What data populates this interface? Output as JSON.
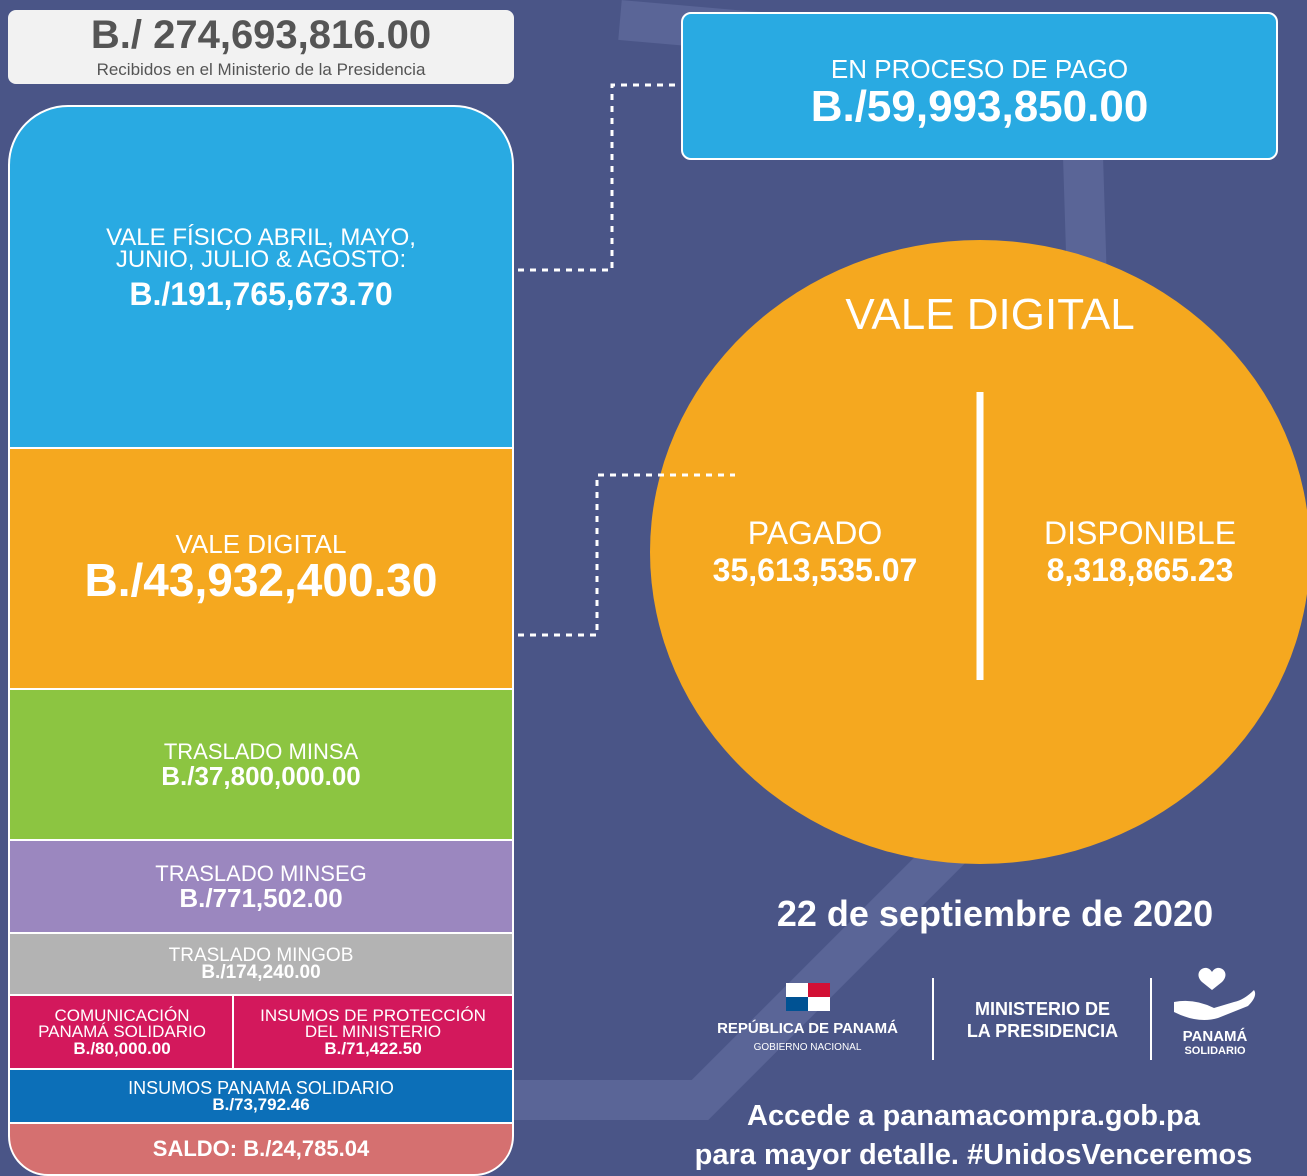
{
  "header": {
    "amount": "B./ 274,693,816.00",
    "caption": "Recibidos en el Ministerio de la Presidencia"
  },
  "in_process": {
    "label": "EN PROCESO DE PAGO",
    "amount": "B./59,993,850.00"
  },
  "blocks": [
    {
      "label": [
        "VALE FÍSICO ABRIL, MAYO,",
        "JUNIO, JULIO & AGOSTO:"
      ],
      "amount": "B./191,765,673.70"
    },
    {
      "label": [
        "VALE DIGITAL"
      ],
      "amount": "B./43,932,400.30"
    },
    {
      "label": [
        "TRASLADO MINSA"
      ],
      "amount": "B./37,800,000.00"
    },
    {
      "label": [
        "TRASLADO MINSEG"
      ],
      "amount": "B./771,502.00"
    },
    {
      "label": [
        "TRASLADO MINGOB"
      ],
      "amount": "B./174,240.00"
    },
    {
      "label": [
        "COMUNICACIÓN",
        "PANAMÁ SOLIDARIO"
      ],
      "amount": "B./80,000.00"
    },
    {
      "label": [
        "INSUMOS DE PROTECCIÓN",
        "DEL MINISTERIO"
      ],
      "amount": "B./71,422.50"
    },
    {
      "label": [
        "INSUMOS PANAMA SOLIDARIO"
      ],
      "amount": "B./73,792.46"
    },
    {
      "label": [
        "SALDO: B./24,785.04"
      ]
    }
  ],
  "circle": {
    "title": "VALE DIGITAL",
    "left": {
      "label": "PAGADO",
      "value": "35,613,535.07"
    },
    "right": {
      "label": "DISPONIBLE",
      "value": "8,318,865.23"
    }
  },
  "date": "22 de septiembre de 2020",
  "logos": {
    "republic": "REPÚBLICA DE PANAMÁ",
    "government": "GOBIERNO NACIONAL",
    "ministry": [
      "MINISTERIO DE",
      "LA PRESIDENCIA"
    ],
    "solidario": [
      "PANAMÁ",
      "SOLIDARIO"
    ]
  },
  "footer": {
    "line1": [
      "Accede a ",
      "panamacompra.gob.pa"
    ],
    "line2": [
      "para mayor detalle. ",
      "#UnidosVenceremos"
    ]
  }
}
